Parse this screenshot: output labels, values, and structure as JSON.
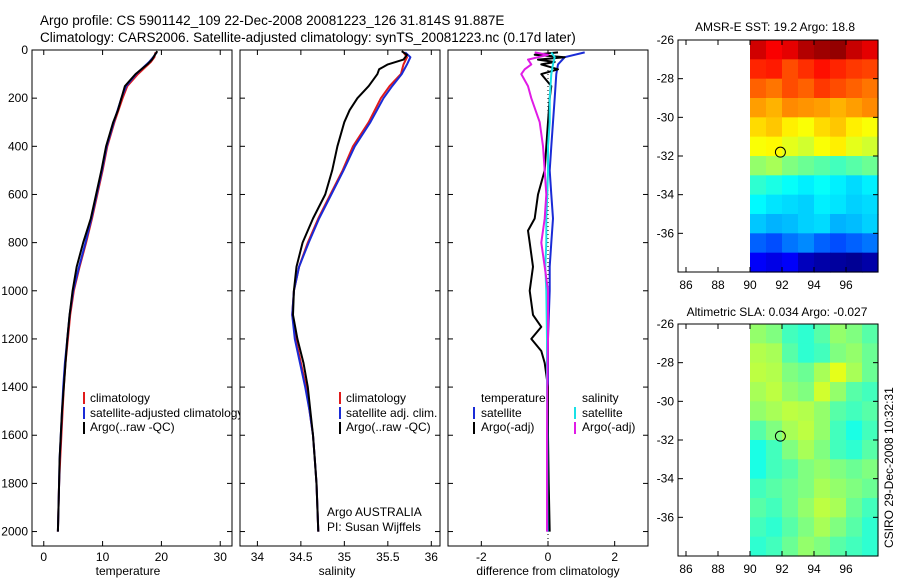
{
  "figure": {
    "title_line1": "Argo profile: CS 5901142_109 22-Dec-2008 20081223_126 31.814S 91.887E",
    "title_line2": "Climatology: CARS2006. Satellite-adjusted climatology: synTS_20081223.nc (0.17d later)",
    "credit_line1": "Argo AUSTRALIA",
    "credit_line2": "PI: Susan Wijffels",
    "stamp": "CSIRO 29-Dec-2008 10:32:31",
    "colors": {
      "red": "#e01b1b",
      "blue": "#1a2bd6",
      "black": "#000000",
      "cyan": "#19e0e6",
      "magenta": "#e01be6"
    }
  },
  "chart_data": [
    {
      "type": "line",
      "id": "temperature",
      "xlabel": "temperature",
      "xlim": [
        -2,
        32
      ],
      "ylim": [
        2060,
        0
      ],
      "y_reversed": true,
      "xticks": [
        0,
        10,
        20,
        30
      ],
      "yticks": [
        0,
        200,
        400,
        600,
        800,
        1000,
        1200,
        1400,
        1600,
        1800,
        2000
      ],
      "legend": [
        "climatology",
        "satellite-adjusted climatology",
        "Argo(..raw -QC)"
      ],
      "series": [
        {
          "name": "climatology",
          "color": "red",
          "depth": [
            10,
            30,
            50,
            100,
            150,
            200,
            300,
            400,
            500,
            600,
            700,
            800,
            900,
            1000,
            1100,
            1200,
            1300,
            1400,
            1500,
            1600,
            1700,
            1800,
            1900,
            2000
          ],
          "values": [
            19.0,
            18.8,
            18.2,
            16.0,
            14.2,
            13.4,
            12.0,
            10.8,
            10.0,
            9.1,
            8.2,
            7.2,
            6.1,
            5.1,
            4.5,
            4.1,
            3.7,
            3.4,
            3.2,
            3.0,
            2.8,
            2.6,
            2.5,
            2.4
          ]
        },
        {
          "name": "satellite-adjusted climatology",
          "color": "blue",
          "depth": [
            10,
            30,
            50,
            100,
            150,
            200,
            300,
            400,
            500,
            600,
            700,
            800,
            900,
            1000,
            1100,
            1200,
            1300,
            1400,
            1500,
            1600,
            1700,
            1800,
            1900,
            2000
          ],
          "values": [
            19.2,
            18.6,
            17.9,
            15.7,
            14.0,
            13.2,
            11.9,
            10.7,
            9.9,
            9.0,
            8.1,
            7.1,
            6.0,
            5.0,
            4.4,
            4.0,
            3.6,
            3.3,
            3.1,
            2.9,
            2.7,
            2.6,
            2.5,
            2.4
          ]
        },
        {
          "name": "Argo(..raw -QC)",
          "color": "black",
          "depth": [
            5,
            20,
            40,
            60,
            100,
            150,
            200,
            250,
            300,
            400,
            500,
            600,
            700,
            800,
            900,
            1000,
            1100,
            1200,
            1300,
            1400,
            1500,
            1600,
            1700,
            1800,
            1900,
            2000
          ],
          "values": [
            19.3,
            18.9,
            18.4,
            17.6,
            15.6,
            13.8,
            13.2,
            12.6,
            11.8,
            10.6,
            9.8,
            8.9,
            8.0,
            6.7,
            5.6,
            4.9,
            4.4,
            4.0,
            3.7,
            3.4,
            3.1,
            2.9,
            2.7,
            2.6,
            2.5,
            2.4
          ]
        }
      ]
    },
    {
      "type": "line",
      "id": "salinity",
      "xlabel": "salinity",
      "xlim": [
        33.8,
        36.1
      ],
      "ylim": [
        2060,
        0
      ],
      "y_reversed": true,
      "xticks": [
        34,
        34.5,
        35,
        35.5,
        36
      ],
      "legend": [
        "climatology",
        "satellite adj. clim.",
        "Argo(..raw -QC)"
      ],
      "series": [
        {
          "name": "climatology",
          "color": "red",
          "depth": [
            10,
            30,
            60,
            100,
            150,
            200,
            300,
            400,
            500,
            600,
            700,
            800,
            900,
            1000,
            1100,
            1200,
            1300,
            1400,
            1500,
            1600,
            1700,
            1800,
            1900,
            2000
          ],
          "values": [
            35.68,
            35.72,
            35.68,
            35.65,
            35.52,
            35.42,
            35.28,
            35.1,
            34.98,
            34.84,
            34.7,
            34.58,
            34.48,
            34.42,
            34.4,
            34.44,
            34.5,
            34.56,
            34.6,
            34.64,
            34.66,
            34.68,
            34.69,
            34.7
          ]
        },
        {
          "name": "satellite adj. clim.",
          "color": "blue",
          "depth": [
            10,
            30,
            60,
            100,
            150,
            200,
            300,
            400,
            500,
            600,
            700,
            800,
            900,
            1000,
            1100,
            1200,
            1300,
            1400,
            1500,
            1600,
            1700,
            1800,
            1900,
            2000
          ],
          "values": [
            35.7,
            35.76,
            35.72,
            35.66,
            35.55,
            35.45,
            35.3,
            35.12,
            34.99,
            34.85,
            34.71,
            34.59,
            34.48,
            34.42,
            34.4,
            34.43,
            34.49,
            34.55,
            34.6,
            34.64,
            34.66,
            34.68,
            34.69,
            34.7
          ]
        },
        {
          "name": "Argo(..raw -QC)",
          "color": "black",
          "depth": [
            5,
            20,
            40,
            60,
            80,
            100,
            150,
            200,
            250,
            300,
            400,
            500,
            600,
            700,
            800,
            900,
            1000,
            1100,
            1200,
            1300,
            1400,
            1500,
            1600,
            1700,
            1800,
            1900,
            2000
          ],
          "values": [
            35.66,
            35.72,
            35.68,
            35.5,
            35.4,
            35.38,
            35.28,
            35.15,
            35.06,
            35.0,
            34.92,
            34.86,
            34.78,
            34.64,
            34.52,
            34.45,
            34.42,
            34.41,
            34.46,
            34.53,
            34.58,
            34.61,
            34.64,
            34.66,
            34.68,
            34.69,
            34.7
          ]
        }
      ]
    },
    {
      "type": "line",
      "id": "difference",
      "xlabel": "difference from climatology",
      "xlim": [
        -3,
        3
      ],
      "ylim": [
        2060,
        0
      ],
      "y_reversed": true,
      "xticks": [
        -2,
        0,
        2
      ],
      "legend_left_title": "temperature",
      "legend_right_title": "salinity",
      "legend": [
        "satellite",
        "Argo(-adj)",
        "satellite",
        "Argo(-adj)"
      ],
      "series": [
        {
          "name": "satellite",
          "group": "temperature",
          "color": "blue",
          "depth": [
            10,
            30,
            60,
            100,
            200,
            300,
            400,
            500,
            600,
            700,
            800,
            900,
            1000,
            1200,
            1400,
            1600,
            1800,
            2000
          ],
          "values": [
            1.1,
            0.5,
            0.3,
            0.25,
            0.2,
            0.15,
            0.1,
            0.05,
            0.1,
            0.15,
            0.1,
            0.05,
            0.05,
            0.0,
            0.0,
            0.0,
            0.0,
            0.0
          ]
        },
        {
          "name": "Argo(-adj)",
          "group": "temperature",
          "color": "black",
          "depth": [
            10,
            20,
            30,
            40,
            50,
            60,
            80,
            100,
            150,
            200,
            300,
            400,
            500,
            600,
            700,
            750,
            800,
            900,
            1000,
            1100,
            1150,
            1200,
            1250,
            1300,
            1400,
            1600,
            1800,
            2000
          ],
          "values": [
            0.3,
            -0.4,
            0.5,
            -0.3,
            0.2,
            -0.2,
            0.3,
            -0.2,
            0.1,
            0.05,
            0.0,
            -0.05,
            -0.1,
            -0.3,
            -0.4,
            -0.6,
            -0.55,
            -0.45,
            -0.55,
            -0.45,
            -0.2,
            -0.5,
            -0.2,
            -0.1,
            0.0,
            0.0,
            0.02,
            0.05
          ]
        },
        {
          "name": "satellite",
          "group": "salinity",
          "color": "cyan",
          "depth": [
            10,
            30,
            60,
            100,
            200,
            300,
            400,
            500,
            600,
            700,
            800,
            900,
            1000,
            1200,
            1400,
            1600,
            1800,
            2000
          ],
          "values": [
            0.1,
            0.2,
            0.15,
            0.1,
            0.05,
            0.05,
            0.0,
            0.0,
            -0.02,
            -0.05,
            -0.05,
            -0.08,
            -0.05,
            -0.03,
            -0.03,
            -0.02,
            -0.02,
            -0.02
          ]
        },
        {
          "name": "Argo(-adj)",
          "group": "salinity",
          "color": "magenta",
          "depth": [
            10,
            20,
            40,
            60,
            80,
            100,
            150,
            200,
            300,
            400,
            500,
            600,
            700,
            800,
            900,
            1000,
            1200,
            1400,
            1600,
            1800,
            2000
          ],
          "values": [
            -0.4,
            0.0,
            -0.6,
            -0.5,
            -0.7,
            -0.8,
            -0.6,
            -0.5,
            -0.25,
            -0.15,
            -0.1,
            -0.05,
            -0.1,
            -0.2,
            -0.1,
            0.0,
            0.0,
            -0.02,
            -0.03,
            -0.03,
            -0.03
          ]
        }
      ]
    },
    {
      "type": "heatmap",
      "id": "sst_map",
      "title": "AMSR-E SST: 19.2 Argo: 18.8",
      "xlim": [
        85.5,
        98
      ],
      "ylim": [
        -38,
        -26
      ],
      "xticks": [
        86,
        88,
        90,
        92,
        94,
        96
      ],
      "yticks": [
        -26,
        -28,
        -30,
        -32,
        -34,
        -36
      ],
      "data_xlim": [
        90,
        98
      ],
      "marker": {
        "lon": 91.9,
        "lat": -31.8
      },
      "colormap": "jet",
      "rows_north_to_south": [
        [
          0.92,
          0.88,
          0.9,
          0.95,
          0.97,
          0.98,
          0.93,
          0.9
        ],
        [
          0.84,
          0.85,
          0.8,
          0.83,
          0.86,
          0.84,
          0.82,
          0.81
        ],
        [
          0.78,
          0.76,
          0.8,
          0.78,
          0.82,
          0.8,
          0.78,
          0.76
        ],
        [
          0.72,
          0.7,
          0.74,
          0.73,
          0.72,
          0.7,
          0.72,
          0.74
        ],
        [
          0.66,
          0.68,
          0.64,
          0.62,
          0.66,
          0.68,
          0.64,
          0.62
        ],
        [
          0.62,
          0.63,
          0.6,
          0.58,
          0.62,
          0.64,
          0.6,
          0.58
        ],
        [
          0.52,
          0.54,
          0.5,
          0.48,
          0.46,
          0.44,
          0.46,
          0.48
        ],
        [
          0.42,
          0.4,
          0.38,
          0.36,
          0.38,
          0.36,
          0.34,
          0.36
        ],
        [
          0.37,
          0.35,
          0.34,
          0.33,
          0.36,
          0.35,
          0.33,
          0.34
        ],
        [
          0.32,
          0.3,
          0.31,
          0.33,
          0.34,
          0.3,
          0.31,
          0.33
        ],
        [
          0.22,
          0.2,
          0.24,
          0.26,
          0.22,
          0.2,
          0.22,
          0.24
        ],
        [
          0.12,
          0.1,
          0.12,
          0.06,
          0.04,
          0.03,
          0.02,
          0.04
        ]
      ]
    },
    {
      "type": "heatmap",
      "id": "sla_map",
      "title": "Altimetric SLA: 0.034 Argo: -0.027",
      "xlim": [
        85.5,
        98
      ],
      "ylim": [
        -38,
        -26
      ],
      "xticks": [
        86,
        88,
        90,
        92,
        94,
        96
      ],
      "yticks": [
        -26,
        -28,
        -30,
        -32,
        -34,
        -36
      ],
      "data_xlim": [
        90,
        98
      ],
      "marker": {
        "lon": 91.9,
        "lat": -31.8
      },
      "colormap": "jet",
      "rows_north_to_south": [
        [
          0.52,
          0.5,
          0.44,
          0.42,
          0.46,
          0.52,
          0.5,
          0.46
        ],
        [
          0.55,
          0.54,
          0.46,
          0.42,
          0.44,
          0.5,
          0.52,
          0.48
        ],
        [
          0.56,
          0.55,
          0.5,
          0.48,
          0.54,
          0.6,
          0.54,
          0.48
        ],
        [
          0.54,
          0.56,
          0.52,
          0.5,
          0.58,
          0.52,
          0.46,
          0.44
        ],
        [
          0.52,
          0.54,
          0.56,
          0.55,
          0.52,
          0.46,
          0.44,
          0.46
        ],
        [
          0.46,
          0.5,
          0.54,
          0.56,
          0.52,
          0.44,
          0.4,
          0.44
        ],
        [
          0.4,
          0.44,
          0.5,
          0.54,
          0.5,
          0.44,
          0.42,
          0.46
        ],
        [
          0.4,
          0.44,
          0.46,
          0.5,
          0.52,
          0.5,
          0.48,
          0.5
        ],
        [
          0.44,
          0.46,
          0.48,
          0.5,
          0.54,
          0.52,
          0.5,
          0.48
        ],
        [
          0.46,
          0.44,
          0.48,
          0.52,
          0.56,
          0.54,
          0.48,
          0.44
        ],
        [
          0.44,
          0.42,
          0.46,
          0.5,
          0.54,
          0.5,
          0.46,
          0.42
        ],
        [
          0.42,
          0.44,
          0.48,
          0.52,
          0.5,
          0.46,
          0.44,
          0.42
        ]
      ]
    }
  ]
}
